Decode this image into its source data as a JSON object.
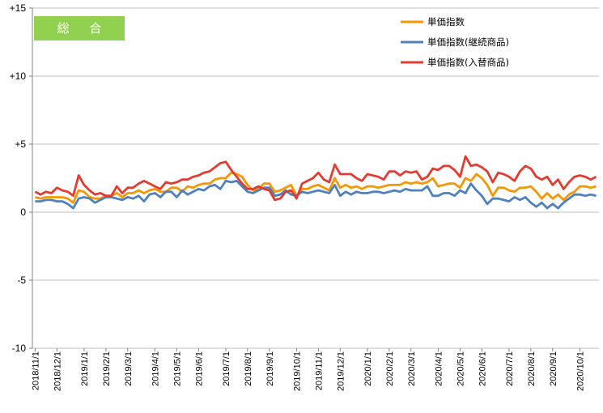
{
  "chart_data": {
    "type": "line",
    "title_badge": "総 合",
    "ylim": [
      -10,
      15
    ],
    "yticks": [
      -10,
      -5,
      0,
      5,
      10,
      15
    ],
    "ytick_labels": [
      "-10",
      "-5",
      "0",
      "+5",
      "+10",
      "+15"
    ],
    "grid": "horizontal",
    "legend_position": "top-right",
    "x_count": 104,
    "x_tick_labels": [
      "2018/11/1",
      "2018/12/1",
      "2019/1/1",
      "2019/2/1",
      "2019/3/1",
      "2019/4/1",
      "2019/5/1",
      "2019/6/1",
      "2019/7/1",
      "2019/8/1",
      "2019/9/1",
      "2019/10/1",
      "2019/11/1",
      "2019/12/1",
      "2020/1/1",
      "2020/2/1",
      "2020/3/1",
      "2020/4/1",
      "2020/5/1",
      "2020/6/1",
      "2020/7/1",
      "2020/8/1",
      "2020/9/1",
      "2020/10/1"
    ],
    "x_tick_index": [
      0,
      4,
      9,
      13,
      17,
      22,
      26,
      30,
      35,
      39,
      43,
      48,
      52,
      56,
      61,
      65,
      69,
      74,
      78,
      82,
      87,
      91,
      95,
      100
    ],
    "series": [
      {
        "name": "単価指数",
        "color": "#F39800",
        "values": [
          1.1,
          1.0,
          1.1,
          1.1,
          1.1,
          1.1,
          1.0,
          0.7,
          1.6,
          1.5,
          1.1,
          1.0,
          1.0,
          1.2,
          1.2,
          1.4,
          1.1,
          1.4,
          1.4,
          1.6,
          1.4,
          1.6,
          1.7,
          1.5,
          1.5,
          1.8,
          1.8,
          1.5,
          1.9,
          1.8,
          2.0,
          2.1,
          2.1,
          2.4,
          2.5,
          2.5,
          2.9,
          2.8,
          2.6,
          2.0,
          1.6,
          1.7,
          2.1,
          2.1,
          1.5,
          1.6,
          1.8,
          2.0,
          1.2,
          1.7,
          1.7,
          1.9,
          2.0,
          1.8,
          1.6,
          2.5,
          1.8,
          2.0,
          1.8,
          1.9,
          1.7,
          1.9,
          1.9,
          1.8,
          1.9,
          2.0,
          2.0,
          2.0,
          2.2,
          2.1,
          2.2,
          2.1,
          2.2,
          2.5,
          1.9,
          2.0,
          2.1,
          2.1,
          1.8,
          2.5,
          2.3,
          2.8,
          2.5,
          2.0,
          1.2,
          1.8,
          1.8,
          1.6,
          1.5,
          1.8,
          1.8,
          1.9,
          1.5,
          1.0,
          1.4,
          1.0,
          1.3,
          0.9,
          1.3,
          1.5,
          1.9,
          1.9,
          1.8,
          1.9
        ]
      },
      {
        "name": "単価指数(継続商品)",
        "color": "#4F81BD",
        "values": [
          0.8,
          0.8,
          0.9,
          0.9,
          0.8,
          0.8,
          0.6,
          0.3,
          1.0,
          1.1,
          1.0,
          0.7,
          0.9,
          1.1,
          1.1,
          1.0,
          0.9,
          1.1,
          1.0,
          1.2,
          0.8,
          1.3,
          1.4,
          1.1,
          1.5,
          1.5,
          1.1,
          1.6,
          1.3,
          1.5,
          1.7,
          1.6,
          1.9,
          2.0,
          1.7,
          2.3,
          2.2,
          2.3,
          1.9,
          1.5,
          1.4,
          1.6,
          1.8,
          1.8,
          1.2,
          1.3,
          1.6,
          1.3,
          1.2,
          1.5,
          1.4,
          1.5,
          1.6,
          1.5,
          1.4,
          2.0,
          1.2,
          1.5,
          1.3,
          1.5,
          1.4,
          1.4,
          1.5,
          1.5,
          1.4,
          1.5,
          1.6,
          1.5,
          1.7,
          1.6,
          1.6,
          1.6,
          1.9,
          1.2,
          1.2,
          1.4,
          1.4,
          1.2,
          1.6,
          1.4,
          2.1,
          1.6,
          1.2,
          0.6,
          1.0,
          1.0,
          0.9,
          0.8,
          1.1,
          0.9,
          1.1,
          0.7,
          0.4,
          0.7,
          0.3,
          0.6,
          0.3,
          0.7,
          1.0,
          1.3,
          1.3,
          1.2,
          1.3,
          1.2
        ]
      },
      {
        "name": "単価指数(入替商品)",
        "color": "#E03C31",
        "values": [
          1.5,
          1.3,
          1.5,
          1.4,
          1.8,
          1.6,
          1.5,
          1.2,
          2.7,
          2.0,
          1.6,
          1.3,
          1.4,
          1.2,
          1.2,
          1.9,
          1.4,
          1.8,
          1.8,
          2.1,
          2.3,
          2.1,
          1.9,
          1.7,
          2.2,
          2.1,
          2.2,
          2.4,
          2.4,
          2.6,
          2.7,
          2.9,
          3.0,
          3.3,
          3.6,
          3.7,
          3.1,
          2.6,
          2.1,
          1.7,
          1.7,
          1.9,
          1.7,
          1.6,
          0.9,
          1.0,
          1.5,
          1.6,
          1.0,
          2.1,
          2.3,
          2.5,
          2.9,
          2.4,
          2.2,
          3.5,
          2.8,
          2.8,
          2.8,
          2.5,
          2.3,
          2.8,
          2.7,
          2.6,
          2.4,
          3.0,
          3.0,
          2.7,
          3.0,
          2.9,
          3.0,
          2.4,
          2.6,
          3.2,
          3.1,
          3.4,
          3.4,
          3.1,
          2.6,
          4.1,
          3.4,
          3.5,
          3.3,
          3.0,
          2.2,
          2.9,
          2.8,
          2.6,
          2.3,
          3.0,
          3.4,
          3.2,
          2.6,
          2.4,
          2.6,
          2.0,
          2.4,
          1.7,
          2.2,
          2.6,
          2.7,
          2.6,
          2.4,
          2.6
        ]
      }
    ]
  }
}
